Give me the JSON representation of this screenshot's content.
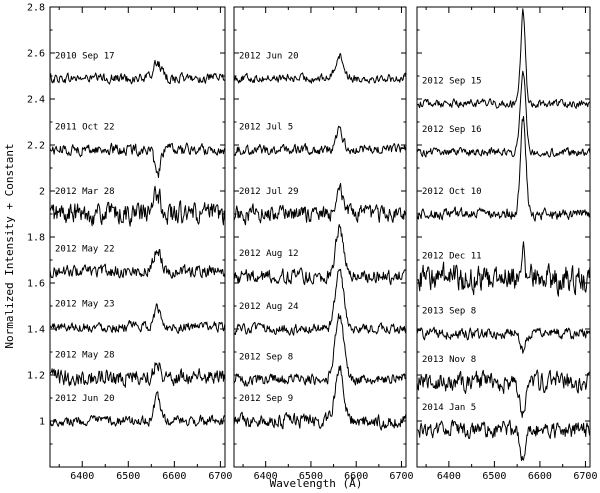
{
  "chart_data": {
    "type": "line",
    "xlabel": "Wavelength (Å)",
    "ylabel": "Normalized Intensity + Constant",
    "xlim": [
      6330,
      6710
    ],
    "ylim": [
      0.8,
      2.8
    ],
    "x_ticks": [
      6400,
      6500,
      6600,
      6700
    ],
    "y_ticks": [
      1,
      1.2,
      1.4,
      1.6,
      1.8,
      2,
      2.2,
      2.4,
      2.6,
      2.8
    ],
    "panels": [
      {
        "spectra": [
          {
            "label": "2010 Sep 17",
            "base": 2.49,
            "peak": 0.07,
            "width": 8,
            "noise": 0.018
          },
          {
            "label": "2011 Oct 22",
            "base": 2.18,
            "peak": -0.12,
            "width": 6,
            "noise": 0.02
          },
          {
            "label": "2012 Mar 28",
            "base": 1.9,
            "peak": 0.09,
            "width": 7,
            "noise": 0.04
          },
          {
            "label": "2012 May 22",
            "base": 1.65,
            "peak": 0.1,
            "width": 8,
            "noise": 0.022
          },
          {
            "label": "2012 May 23",
            "base": 1.41,
            "peak": 0.08,
            "width": 7,
            "noise": 0.018
          },
          {
            "label": "2012 May 28",
            "base": 1.19,
            "peak": 0.07,
            "width": 7,
            "noise": 0.03
          },
          {
            "label": "2012 Jun 20",
            "base": 1.0,
            "peak": 0.1,
            "width": 7,
            "noise": 0.018
          }
        ]
      },
      {
        "spectra": [
          {
            "label": "2012 Jun 20",
            "base": 2.49,
            "peak": 0.1,
            "width": 9,
            "noise": 0.015
          },
          {
            "label": "2012 Jul 5",
            "base": 2.18,
            "peak": 0.08,
            "width": 8,
            "noise": 0.018
          },
          {
            "label": "2012 Jul 29",
            "base": 1.9,
            "peak": 0.12,
            "width": 8,
            "noise": 0.03
          },
          {
            "label": "2012 Aug 12",
            "base": 1.63,
            "peak": 0.2,
            "width": 9,
            "noise": 0.025
          },
          {
            "label": "2012 Aug 24",
            "base": 1.4,
            "peak": 0.26,
            "width": 9,
            "noise": 0.018
          },
          {
            "label": "2012 Sep 8",
            "base": 1.18,
            "peak": 0.28,
            "width": 10,
            "noise": 0.02
          },
          {
            "label": "2012 Sep 9",
            "base": 1.0,
            "peak": 0.24,
            "width": 9,
            "noise": 0.025
          }
        ]
      },
      {
        "spectra": [
          {
            "label": "2012 Sep 15",
            "base": 2.38,
            "peak": 0.4,
            "width": 5,
            "noise": 0.015
          },
          {
            "label": "2012 Sep 16",
            "base": 2.17,
            "peak": 0.36,
            "width": 6,
            "noise": 0.015
          },
          {
            "label": "2012 Oct 10",
            "base": 1.9,
            "peak": 0.42,
            "width": 6,
            "noise": 0.02
          },
          {
            "label": "2012 Dec 11",
            "base": 1.62,
            "peak": 0.14,
            "width": 4,
            "noise": 0.05
          },
          {
            "label": "2013 Sep 8",
            "base": 1.38,
            "peak": -0.08,
            "width": 5,
            "noise": 0.02
          },
          {
            "label": "2013 Nov 8",
            "base": 1.17,
            "peak": -0.14,
            "width": 7,
            "noise": 0.035
          },
          {
            "label": "2014 Jan 5",
            "base": 0.96,
            "peak": -0.12,
            "width": 6,
            "noise": 0.03
          }
        ]
      }
    ]
  }
}
